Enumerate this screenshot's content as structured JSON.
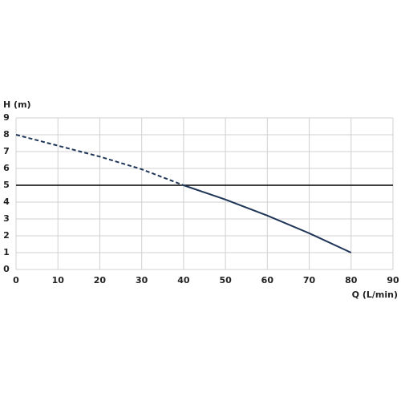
{
  "chart_data": {
    "type": "line",
    "ylabel": "H (m)",
    "xlabel": "Q (L/min)",
    "x": [
      0,
      10,
      20,
      30,
      40,
      50,
      60,
      70,
      80
    ],
    "series": [
      {
        "color": "#1f3557",
        "dashed": true,
        "values": [
          8,
          7.35,
          6.7,
          5.95,
          5,
          null,
          null,
          null,
          null
        ]
      },
      {
        "color": "#1f3557",
        "dashed": false,
        "values": [
          null,
          null,
          null,
          null,
          5,
          4.15,
          3.2,
          2.15,
          1
        ]
      }
    ],
    "hline": 5,
    "hline_color": "#000000",
    "xlim": [
      0,
      90
    ],
    "xticks": [
      0,
      10,
      20,
      30,
      40,
      50,
      60,
      70,
      80,
      90
    ],
    "ylim": [
      0,
      9
    ],
    "yticks": [
      0,
      1,
      2,
      3,
      4,
      5,
      6,
      7,
      8,
      9
    ],
    "grid": true
  }
}
